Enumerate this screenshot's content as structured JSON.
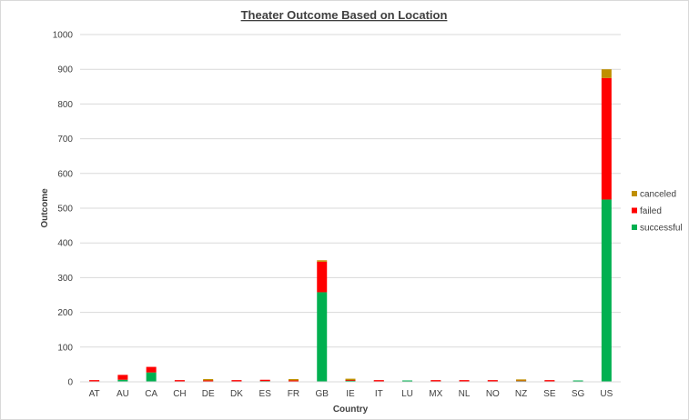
{
  "chart_data": {
    "type": "bar",
    "stacked": true,
    "title": "Theater Outcome Based on Location",
    "xlabel": "Country",
    "ylabel": "Outcome",
    "ylim": [
      0,
      1000
    ],
    "yticks": [
      0,
      100,
      200,
      300,
      400,
      500,
      600,
      700,
      800,
      900,
      1000
    ],
    "grid": true,
    "legend_position": "right",
    "categories": [
      "AT",
      "AU",
      "CA",
      "CH",
      "DE",
      "DK",
      "ES",
      "FR",
      "GB",
      "IE",
      "IT",
      "LU",
      "MX",
      "NL",
      "NO",
      "NZ",
      "SE",
      "SG",
      "US"
    ],
    "series": [
      {
        "name": "successful",
        "color": "#00b050",
        "values": [
          1,
          6,
          27,
          1,
          1,
          1,
          2,
          1,
          258,
          3,
          1,
          1,
          1,
          1,
          1,
          2,
          1,
          2,
          525
        ]
      },
      {
        "name": "failed",
        "color": "#ff0000",
        "values": [
          1,
          14,
          16,
          1,
          3,
          3,
          1,
          3,
          88,
          2,
          2,
          0,
          2,
          2,
          2,
          1,
          2,
          0,
          350
        ]
      },
      {
        "name": "canceled",
        "color": "#bf8f00",
        "values": [
          0,
          0,
          0,
          0,
          1,
          0,
          0,
          1,
          4,
          1,
          0,
          0,
          0,
          0,
          0,
          1,
          0,
          0,
          25
        ]
      }
    ]
  }
}
